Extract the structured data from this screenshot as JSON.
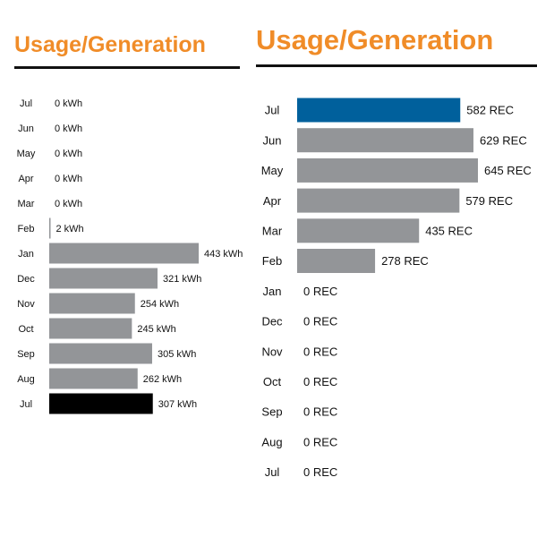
{
  "colors": {
    "title": "#F08C28",
    "bar": "#939598",
    "left_highlight": "#000000",
    "right_highlight": "#00609C",
    "rule": "#111111"
  },
  "chart_data": [
    {
      "type": "bar",
      "orientation": "horizontal",
      "title": "Usage/Generation",
      "categories": [
        "Jul",
        "Jun",
        "May",
        "Apr",
        "Mar",
        "Feb",
        "Jan",
        "Dec",
        "Nov",
        "Oct",
        "Sep",
        "Aug",
        "Jul"
      ],
      "values": [
        0,
        0,
        0,
        0,
        0,
        2,
        443,
        321,
        254,
        245,
        305,
        262,
        307
      ],
      "value_labels": [
        "0 kWh",
        "0 kWh",
        "0 kWh",
        "0 kWh",
        "0 kWh",
        "2 kWh",
        "443 kWh",
        "321 kWh",
        "254 kWh",
        "245 kWh",
        "305 kWh",
        "262 kWh",
        "307 kWh"
      ],
      "unit": "kWh",
      "highlight_index": 12,
      "xlim": [
        0,
        443
      ],
      "grid": false,
      "legend": "none"
    },
    {
      "type": "bar",
      "orientation": "horizontal",
      "title": "Usage/Generation",
      "categories": [
        "Jul",
        "Jun",
        "May",
        "Apr",
        "Mar",
        "Feb",
        "Jan",
        "Dec",
        "Nov",
        "Oct",
        "Sep",
        "Aug",
        "Jul"
      ],
      "values": [
        582,
        629,
        645,
        579,
        435,
        278,
        0,
        0,
        0,
        0,
        0,
        0,
        0
      ],
      "value_labels": [
        "582 REC",
        "629 REC",
        "645 REC",
        "579 REC",
        "435 REC",
        "278 REC",
        "0 REC",
        "0 REC",
        "0 REC",
        "0 REC",
        "0 REC",
        "0 REC",
        "0 REC"
      ],
      "unit": "REC",
      "highlight_index": 0,
      "xlim": [
        0,
        645
      ],
      "grid": false,
      "legend": "none"
    }
  ]
}
